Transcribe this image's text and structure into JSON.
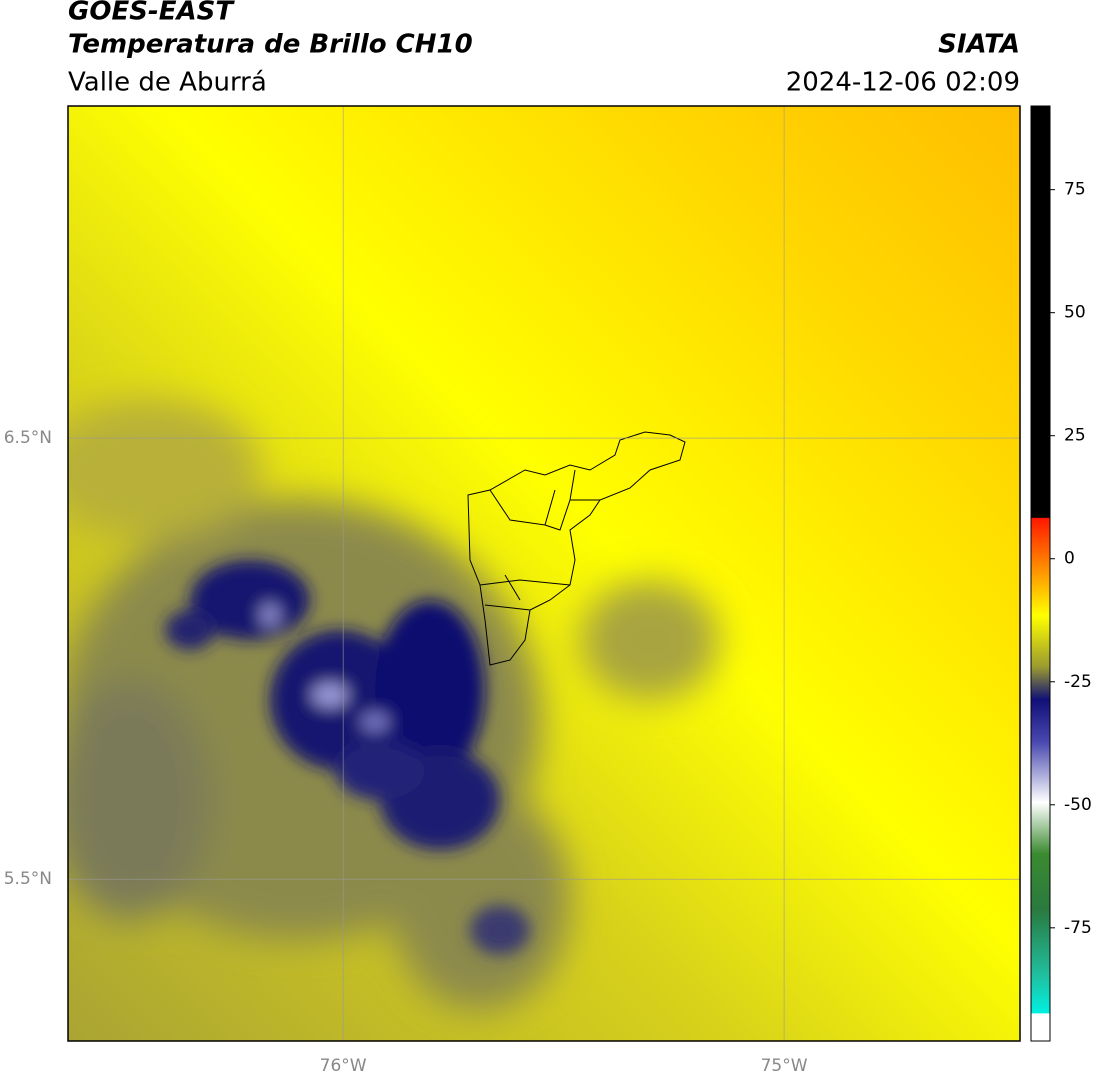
{
  "header": {
    "line1": "GOES-EAST",
    "line2": "Temperatura de Brillo CH10",
    "line3": "Valle de Aburrá",
    "source": "SIATA",
    "timestamp": "2024-12-06 02:09"
  },
  "map": {
    "xlim": [
      -76.624,
      -74.465
    ],
    "ylim": [
      5.133,
      7.253
    ],
    "xticks": [
      {
        "value": -76,
        "label": "76°W"
      },
      {
        "value": -75,
        "label": "75°W"
      }
    ],
    "yticks": [
      {
        "value": 6.5,
        "label": "6.5°N"
      },
      {
        "value": 5.5,
        "label": "5.5°N"
      }
    ],
    "grid": true
  },
  "colorbar": {
    "lim": [
      -98,
      92
    ],
    "ticks": [
      75,
      50,
      25,
      0,
      -25,
      -50,
      -75
    ]
  }
}
